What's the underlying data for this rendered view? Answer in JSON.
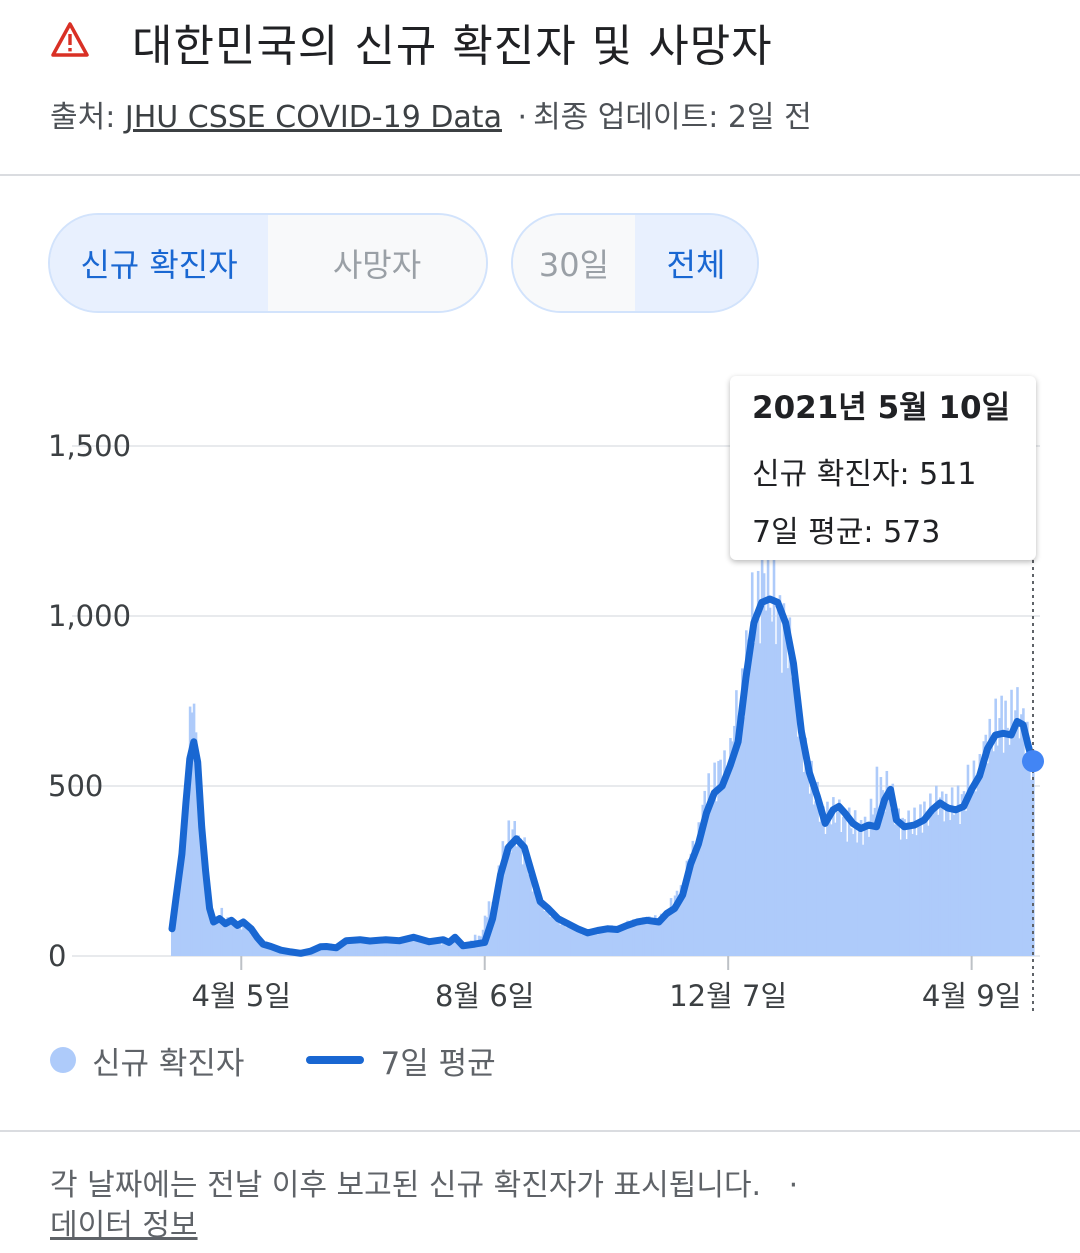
{
  "header": {
    "title": "대한민국의 신규 확진자 및 사망자",
    "source_prefix": "출처:",
    "source_link": "JHU CSSE COVID-19 Data",
    "update_sep": "·",
    "update_text": "최종 업데이트: 2일 전",
    "warning_icon": "warning-triangle-icon"
  },
  "toggles": {
    "metric": {
      "options": [
        "신규 확진자",
        "사망자"
      ],
      "selected": "신규 확진자"
    },
    "range": {
      "options": [
        "30일",
        "전체"
      ],
      "selected": "전체"
    }
  },
  "tooltip": {
    "date": "2021년 5월 10일",
    "cases_line": "신규 확진자: 511",
    "avg_line": "7일 평균: 573"
  },
  "legend": {
    "cases_label": "신규 확진자",
    "avg_label": "7일 평균"
  },
  "footer": {
    "note": "각 날짜에는 전날 이후 보고된 신규 확진자가 표시됩니다.",
    "sep": "·",
    "more_link": "데이터 정보"
  },
  "colors": {
    "bar": "#aecbfa",
    "line": "#1967d2",
    "active_bg": "#e8f0fe",
    "active_text": "#1967d2"
  },
  "chart_data": {
    "type": "bar",
    "y_ticks": [
      0,
      500,
      1000,
      1500
    ],
    "y_tick_labels": [
      "0",
      "500",
      "1,000",
      "1,500"
    ],
    "x_ticks": [
      {
        "day": 35,
        "label": "4월 5일"
      },
      {
        "day": 158,
        "label": "8월 6일"
      },
      {
        "day": 281,
        "label": "12월 7일"
      },
      {
        "day": 404,
        "label": "4월 9일"
      }
    ],
    "ylim": [
      0,
      1500
    ],
    "grid": true,
    "legend_position": "bottom-left",
    "highlight_day": 435,
    "series": [
      {
        "name": "7일 평균",
        "type": "line",
        "points": [
          [
            0,
            80
          ],
          [
            2,
            170
          ],
          [
            5,
            300
          ],
          [
            7,
            450
          ],
          [
            9,
            580
          ],
          [
            11,
            630
          ],
          [
            13,
            570
          ],
          [
            15,
            380
          ],
          [
            17,
            250
          ],
          [
            19,
            140
          ],
          [
            21,
            100
          ],
          [
            24,
            110
          ],
          [
            27,
            95
          ],
          [
            30,
            105
          ],
          [
            33,
            90
          ],
          [
            36,
            100
          ],
          [
            40,
            80
          ],
          [
            43,
            55
          ],
          [
            46,
            35
          ],
          [
            50,
            28
          ],
          [
            55,
            17
          ],
          [
            60,
            12
          ],
          [
            65,
            8
          ],
          [
            70,
            14
          ],
          [
            75,
            27
          ],
          [
            78,
            28
          ],
          [
            83,
            24
          ],
          [
            88,
            45
          ],
          [
            95,
            48
          ],
          [
            100,
            44
          ],
          [
            108,
            48
          ],
          [
            115,
            45
          ],
          [
            122,
            55
          ],
          [
            130,
            42
          ],
          [
            137,
            48
          ],
          [
            140,
            40
          ],
          [
            143,
            55
          ],
          [
            147,
            30
          ],
          [
            153,
            35
          ],
          [
            158,
            40
          ],
          [
            162,
            110
          ],
          [
            166,
            240
          ],
          [
            170,
            320
          ],
          [
            174,
            345
          ],
          [
            178,
            320
          ],
          [
            182,
            240
          ],
          [
            186,
            160
          ],
          [
            190,
            140
          ],
          [
            195,
            110
          ],
          [
            200,
            95
          ],
          [
            205,
            80
          ],
          [
            210,
            68
          ],
          [
            215,
            75
          ],
          [
            220,
            80
          ],
          [
            225,
            78
          ],
          [
            230,
            90
          ],
          [
            235,
            100
          ],
          [
            240,
            105
          ],
          [
            246,
            100
          ],
          [
            250,
            125
          ],
          [
            254,
            140
          ],
          [
            258,
            180
          ],
          [
            262,
            270
          ],
          [
            266,
            330
          ],
          [
            270,
            420
          ],
          [
            274,
            480
          ],
          [
            278,
            500
          ],
          [
            282,
            560
          ],
          [
            286,
            630
          ],
          [
            290,
            820
          ],
          [
            294,
            980
          ],
          [
            298,
            1040
          ],
          [
            302,
            1050
          ],
          [
            306,
            1040
          ],
          [
            310,
            980
          ],
          [
            314,
            860
          ],
          [
            318,
            660
          ],
          [
            322,
            540
          ],
          [
            326,
            470
          ],
          [
            330,
            390
          ],
          [
            334,
            430
          ],
          [
            337,
            440
          ],
          [
            340,
            420
          ],
          [
            344,
            390
          ],
          [
            348,
            375
          ],
          [
            352,
            385
          ],
          [
            356,
            380
          ],
          [
            360,
            460
          ],
          [
            363,
            490
          ],
          [
            366,
            400
          ],
          [
            370,
            380
          ],
          [
            375,
            385
          ],
          [
            380,
            400
          ],
          [
            384,
            430
          ],
          [
            388,
            450
          ],
          [
            392,
            435
          ],
          [
            396,
            430
          ],
          [
            400,
            440
          ],
          [
            404,
            490
          ],
          [
            408,
            530
          ],
          [
            412,
            610
          ],
          [
            416,
            650
          ],
          [
            420,
            655
          ],
          [
            424,
            650
          ],
          [
            427,
            690
          ],
          [
            430,
            680
          ],
          [
            433,
            610
          ],
          [
            435,
            573
          ]
        ]
      },
      {
        "name": "신규 확진자",
        "type": "bar",
        "note": "daily values fluctuate around the 7일 평균 line",
        "points": [
          [
            0,
            60
          ],
          [
            3,
            220
          ],
          [
            6,
            400
          ],
          [
            9,
            820
          ],
          [
            11,
            850
          ],
          [
            13,
            430
          ],
          [
            16,
            240
          ],
          [
            19,
            150
          ],
          [
            22,
            90
          ],
          [
            25,
            140
          ],
          [
            30,
            100
          ],
          [
            35,
            80
          ],
          [
            45,
            35
          ],
          [
            55,
            15
          ],
          [
            65,
            10
          ],
          [
            75,
            30
          ],
          [
            90,
            50
          ],
          [
            110,
            45
          ],
          [
            130,
            40
          ],
          [
            150,
            30
          ],
          [
            165,
            280
          ],
          [
            170,
            420
          ],
          [
            172,
            440
          ],
          [
            175,
            340
          ],
          [
            180,
            220
          ],
          [
            190,
            120
          ],
          [
            200,
            90
          ],
          [
            210,
            60
          ],
          [
            220,
            80
          ],
          [
            230,
            95
          ],
          [
            240,
            110
          ],
          [
            250,
            130
          ],
          [
            260,
            300
          ],
          [
            270,
            520
          ],
          [
            280,
            630
          ],
          [
            290,
            1000
          ],
          [
            295,
            1060
          ],
          [
            298,
            1240
          ],
          [
            302,
            1080
          ],
          [
            306,
            950
          ],
          [
            310,
            900
          ],
          [
            318,
            600
          ],
          [
            325,
            450
          ],
          [
            332,
            420
          ],
          [
            340,
            360
          ],
          [
            350,
            370
          ],
          [
            358,
            620
          ],
          [
            366,
            380
          ],
          [
            375,
            400
          ],
          [
            385,
            470
          ],
          [
            395,
            450
          ],
          [
            405,
            570
          ],
          [
            415,
            700
          ],
          [
            425,
            790
          ],
          [
            430,
            700
          ],
          [
            435,
            511
          ]
        ]
      }
    ]
  }
}
